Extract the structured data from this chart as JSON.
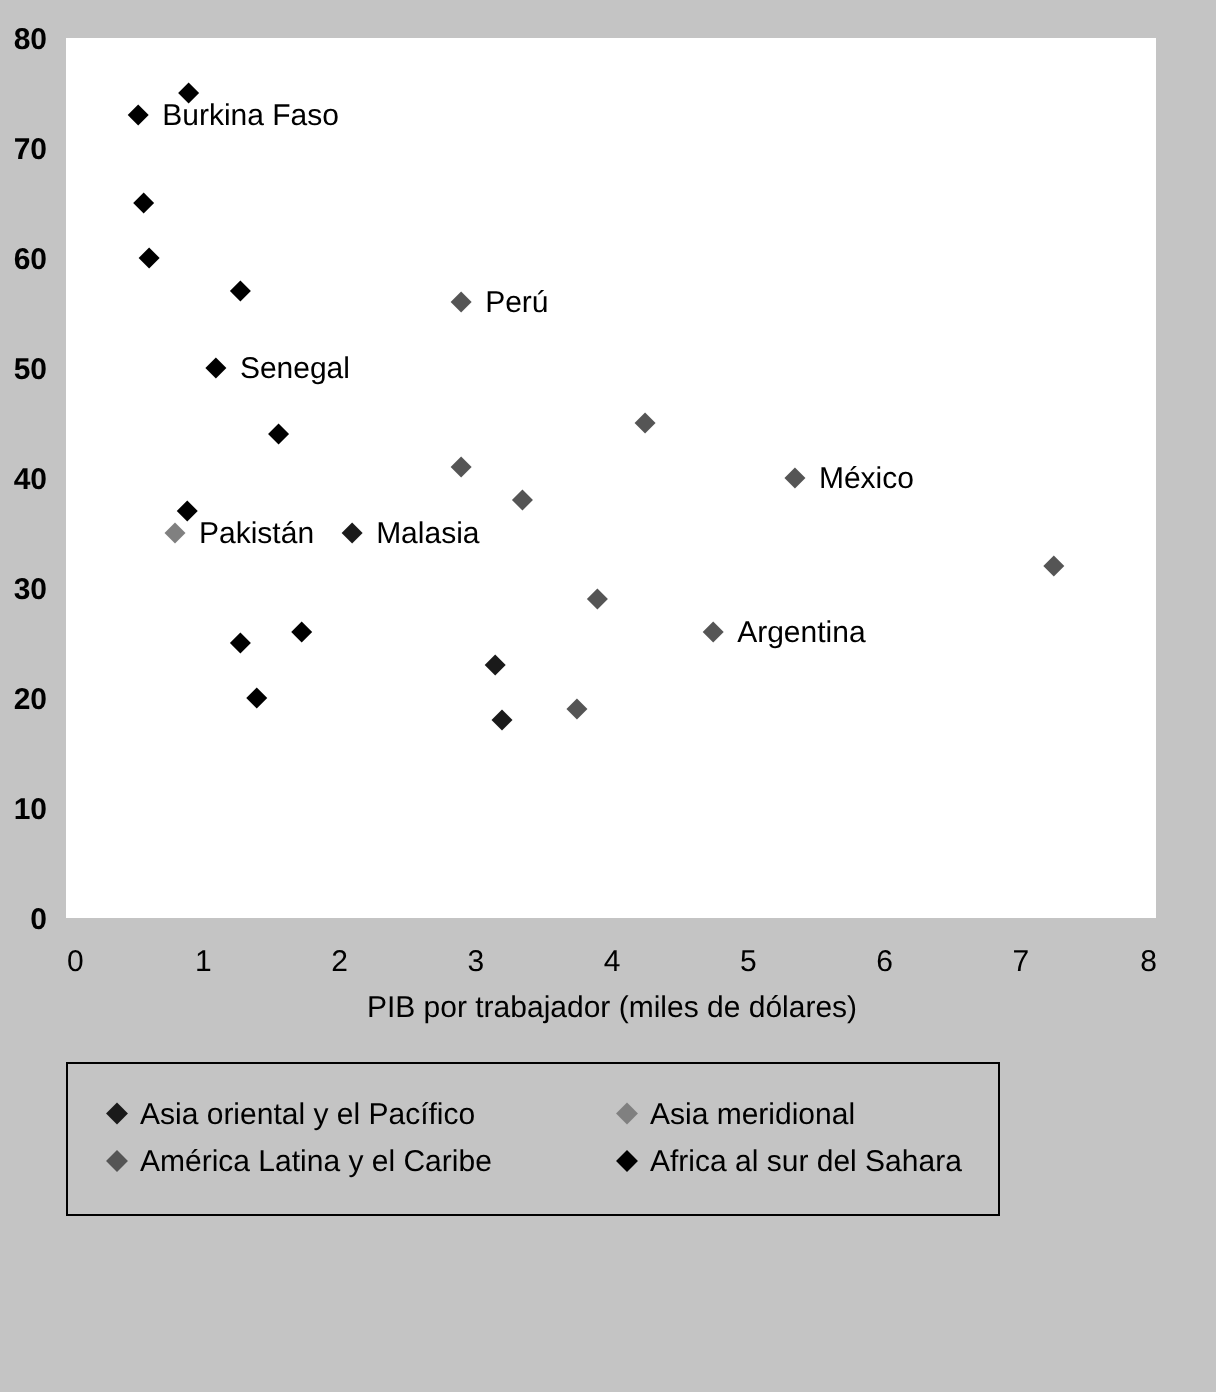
{
  "chart_data": {
    "type": "scatter",
    "xlabel": "PIB por trabajador (miles de dólares)",
    "xlim": [
      0,
      8
    ],
    "xticks": [
      0,
      1,
      2,
      3,
      4,
      5,
      6,
      7,
      8
    ],
    "ylim": [
      0,
      80
    ],
    "yticks": [
      0,
      10,
      20,
      30,
      40,
      50,
      60,
      70,
      80
    ],
    "grid": false,
    "legend": "bottom",
    "marker": "diamond",
    "series": [
      {
        "name": "Asia oriental y el Pacífico",
        "color": "#1a1a1a",
        "x": [
          2.1,
          3.15,
          3.2
        ],
        "values": [
          35,
          23,
          18
        ]
      },
      {
        "name": "Asia meridional",
        "color": "#808080",
        "x": [
          0.8
        ],
        "values": [
          35
        ]
      },
      {
        "name": "América Latina y el Caribe",
        "color": "#555555",
        "x": [
          2.9,
          2.9,
          3.35,
          4.25,
          5.35,
          7.25,
          3.9,
          4.75,
          3.75
        ],
        "values": [
          56,
          41,
          38,
          45,
          40,
          32,
          29,
          26,
          19
        ]
      },
      {
        "name": "Africa al sur del Sahara",
        "color": "#000000",
        "x": [
          0.53,
          0.9,
          0.57,
          0.61,
          1.28,
          1.1,
          0.89,
          1.56,
          1.4,
          1.28,
          1.73
        ],
        "values": [
          73,
          75,
          65,
          60,
          57,
          50,
          37,
          44,
          20,
          25,
          26
        ]
      }
    ],
    "annotations": [
      {
        "text": "Burkina Faso",
        "x": 0.53,
        "y": 73
      },
      {
        "text": "Senegal",
        "x": 1.1,
        "y": 50
      },
      {
        "text": "Perú",
        "x": 2.9,
        "y": 56
      },
      {
        "text": "México",
        "x": 5.35,
        "y": 40
      },
      {
        "text": "Argentina",
        "x": 4.75,
        "y": 26
      },
      {
        "text": "Malasia",
        "x": 2.1,
        "y": 35
      },
      {
        "text": "Pakistán",
        "x": 0.8,
        "y": 35
      }
    ]
  }
}
